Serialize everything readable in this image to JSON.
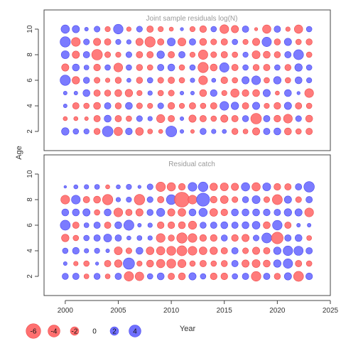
{
  "chart_data": [
    {
      "type": "scatter",
      "subtype": "bubble",
      "title": "Joint sample residuals log(N)",
      "ylabel": "Age",
      "xlim": [
        1998,
        2025
      ],
      "ylim": [
        0.5,
        11.5
      ],
      "yticks": [
        2,
        4,
        6,
        8,
        10
      ],
      "ages": [
        10,
        9,
        8,
        7,
        6,
        5,
        4,
        3,
        2
      ],
      "years": [
        2000,
        2001,
        2002,
        2003,
        2004,
        2005,
        2006,
        2007,
        2008,
        2009,
        2010,
        2011,
        2012,
        2013,
        2014,
        2015,
        2016,
        2017,
        2018,
        2019,
        2020,
        2021,
        2022,
        2023
      ],
      "residuals": [
        [
          2,
          1.5,
          0.4,
          1,
          -0.8,
          2.6,
          -0.6,
          1,
          -1.2,
          -0.8,
          -0.5,
          0.3,
          -0.8,
          -1.3,
          0.9,
          -2.2,
          -1.5,
          1.2,
          -0.3,
          -2,
          1.2,
          -0.6,
          -2,
          0.9
        ],
        [
          3,
          -2.2,
          1,
          -1.5,
          -1.2,
          0.8,
          0.6,
          -1.5,
          -3,
          -1.2,
          1.8,
          -1.8,
          1.2,
          -1.4,
          -1,
          -1.2,
          0.9,
          -0.8,
          -1.5,
          2.5,
          -1.1,
          1.5,
          -0.9,
          -1.1
        ],
        [
          1.8,
          -1.5,
          1.2,
          -3.2,
          -1,
          -0.8,
          1,
          -1.2,
          -1.2,
          1.6,
          -1.2,
          1.2,
          -0.8,
          -2.5,
          -1,
          -1.2,
          -0.9,
          0.8,
          -1.8,
          -1.4,
          -1.1,
          1.2,
          2.8,
          -0.9
        ],
        [
          -1.5,
          1.4,
          0.7,
          -1.3,
          0.9,
          -2.2,
          0.9,
          -1.1,
          -0.9,
          1.2,
          1.4,
          -0.9,
          0.9,
          -3,
          -1.4,
          2.5,
          -1.2,
          0.9,
          -1.1,
          -1.2,
          0.9,
          -1.1,
          1.6,
          0.9
        ],
        [
          3,
          -1.6,
          1.1,
          -1,
          -0.6,
          -1.1,
          0.5,
          -1.1,
          0.9,
          -1,
          -1.2,
          -0.9,
          0.6,
          -2.2,
          0.5,
          -1.3,
          -0.9,
          1.5,
          2.2,
          -0.9,
          1.6,
          -0.9,
          1.4,
          0.8
        ],
        [
          0.4,
          0.4,
          1.4,
          -1.2,
          -1.1,
          -1.4,
          -1.6,
          -0.8,
          0.6,
          -0.9,
          -1,
          0.4,
          0.4,
          -1.4,
          1.3,
          -0.8,
          -2,
          -1.3,
          -1.4,
          1.5,
          -0.5,
          1.4,
          0.3,
          -2.2
        ],
        [
          0.4,
          -1.2,
          -0.9,
          -1.4,
          1.2,
          -1.1,
          1.4,
          -1,
          -0.8,
          1,
          -1.3,
          -0.8,
          -1.2,
          -0.9,
          -1.2,
          2.2,
          1.6,
          -1.2,
          1.5,
          -0.8,
          -1.3,
          1.5,
          -1.2,
          -0.9
        ],
        [
          -0.5,
          -0.5,
          -0.4,
          -1.2,
          1.4,
          -1.2,
          -0.9,
          1,
          0.6,
          -1.9,
          -1.2,
          0.4,
          -1.5,
          -1.2,
          -0.9,
          -1.5,
          -1.2,
          1.1,
          -3.2,
          1.2,
          -1.3,
          -2.2,
          1,
          -1.4
        ],
        [
          1.6,
          0.9,
          0.8,
          -1.1,
          3.2,
          -2,
          1.3,
          -1.7,
          -0.7,
          -0.5,
          3.3,
          0.4,
          -0.4,
          1.1,
          0.6,
          0.5,
          -1.1,
          -0.7,
          -1.5,
          1.2,
          1.4,
          -1.4,
          -0.9,
          -1.2
        ]
      ]
    },
    {
      "type": "scatter",
      "subtype": "bubble",
      "title": "Residual catch",
      "ylabel": "Age",
      "xlabel": "Year",
      "xlim": [
        1998,
        2025
      ],
      "ylim": [
        0.5,
        11.5
      ],
      "yticks": [
        2,
        4,
        6,
        8,
        10
      ],
      "xticks": [
        2000,
        2005,
        2010,
        2015,
        2020,
        2025
      ],
      "ages": [
        9,
        8,
        7,
        6,
        5,
        4,
        3,
        2
      ],
      "years": [
        2000,
        2001,
        2002,
        2003,
        2004,
        2005,
        2006,
        2007,
        2008,
        2009,
        2010,
        2011,
        2012,
        2013,
        2014,
        2015,
        2016,
        2017,
        2018,
        2019,
        2020,
        2021,
        2022,
        2023
      ],
      "residuals": [
        [
          0.2,
          0.5,
          0.6,
          0.7,
          -0.5,
          0.5,
          0.8,
          0.3,
          1,
          -2.5,
          -2,
          -1.3,
          2.2,
          2.6,
          -1.6,
          -1.8,
          -1.5,
          2,
          -2,
          1.8,
          -1.3,
          -1.2,
          1.2,
          3.1
        ],
        [
          -2.2,
          2.2,
          -1.2,
          -1.4,
          -3,
          0.6,
          0.8,
          -3.1,
          1,
          -1.2,
          2.7,
          -6.2,
          -2.2,
          4.8,
          -1.3,
          -1.7,
          -1,
          1.1,
          1.8,
          -1,
          -2.8,
          1.5,
          -1,
          1.2
        ],
        [
          1.4,
          1.4,
          1.5,
          -0.9,
          1.4,
          -2.2,
          -1.2,
          -1.5,
          1.1,
          1.9,
          -1.5,
          -1.7,
          1.4,
          2,
          -1.7,
          -1.3,
          1.4,
          1.4,
          1.4,
          1.3,
          1.2,
          1.6,
          1.5,
          -2.2
        ],
        [
          2.8,
          -1.2,
          0.7,
          1.2,
          -1.2,
          1.4,
          2.9,
          0.4,
          0.6,
          -1.3,
          -1.3,
          -1.4,
          -1.9,
          1.1,
          1.2,
          1.4,
          1.2,
          1.4,
          1.7,
          -1.4,
          2.6,
          -1.2,
          0.4,
          0.4
        ],
        [
          -1.6,
          -0.9,
          0.9,
          1.2,
          1.8,
          1.2,
          0.5,
          0.7,
          0.6,
          -2.2,
          -1.1,
          -3,
          -2.2,
          -1.3,
          -1.3,
          1.1,
          -1.3,
          -1.5,
          1,
          2.8,
          -3.8,
          1.2,
          1.4,
          -0.7
        ],
        [
          0.9,
          1.3,
          0.6,
          0.8,
          0.4,
          -1.8,
          -1,
          1.4,
          -1.7,
          -2,
          -2.3,
          -2.8,
          -2.2,
          -1.7,
          -1.6,
          -1.2,
          1.2,
          -1,
          -1.5,
          -1.2,
          1.6,
          2.6,
          2.4,
          1.2
        ],
        [
          0.4,
          -0.6,
          -0.9,
          0.3,
          -1.2,
          -1.6,
          3.6,
          -0.8,
          -1.4,
          -2,
          -2.3,
          -1.9,
          -0.9,
          -1.2,
          -0.9,
          -1.1,
          1.2,
          -1.5,
          -1.8,
          -1.4,
          1.6,
          2.5,
          -1.2,
          -0.9
        ],
        [
          1.1,
          1.2,
          -0.7,
          1.1,
          -0.7,
          1.2,
          -2.5,
          -2.1,
          0.9,
          1.4,
          -1.2,
          -1.4,
          1.5,
          0.9,
          -1.3,
          -1.3,
          0.9,
          1.2,
          -2.6,
          1.2,
          -1.1,
          1.5,
          -2.8,
          1.3
        ]
      ]
    }
  ],
  "axes": {
    "ylabel": "Age",
    "xlabel": "Year",
    "xticks": [
      "2000",
      "2005",
      "2010",
      "2015",
      "2020",
      "2025"
    ],
    "yticks": [
      "2",
      "4",
      "6",
      "8",
      "10"
    ]
  },
  "legend": {
    "values": [
      -6,
      -4,
      -2,
      0,
      2,
      4
    ],
    "labels": [
      "-6",
      "-4",
      "-2",
      "0",
      "2",
      "4"
    ]
  },
  "colors": {
    "negative_fill": "#ff7070",
    "negative_stroke": "#ee4a4a",
    "positive_fill": "#7070ff",
    "positive_stroke": "#4a4aee",
    "frame": "#444444",
    "title": "#9a9a9a",
    "axis_text": "#333333"
  }
}
